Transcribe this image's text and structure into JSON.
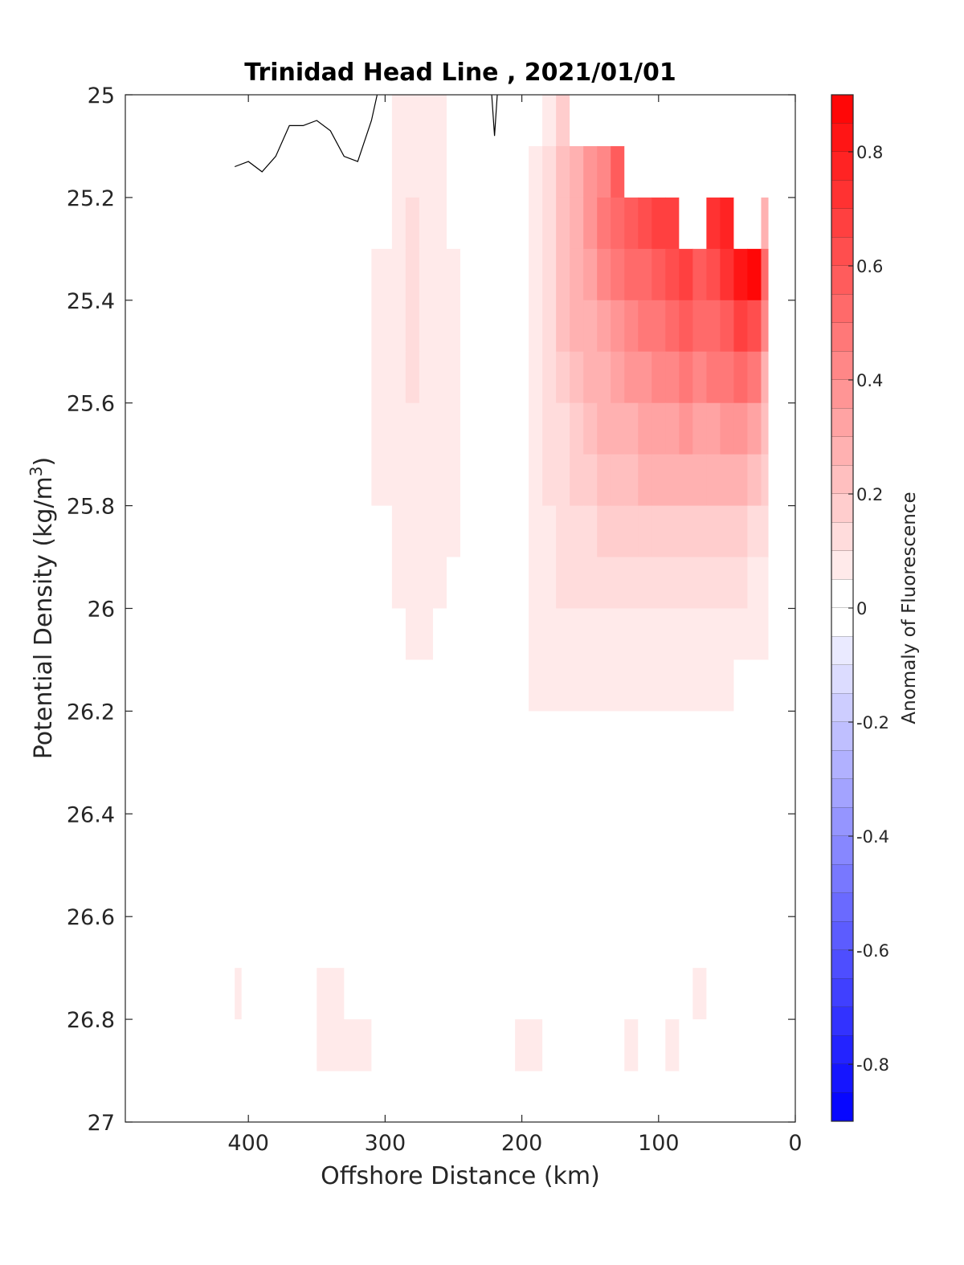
{
  "chart_data": {
    "type": "heatmap",
    "title": "Trinidad Head Line , 2021/01/01",
    "xlabel": "Offshore Distance (km)",
    "ylabel": "Potential Density (kg/m",
    "ylabel_sup": "3",
    "ylabel_close": ")",
    "xlim": [
      490,
      0
    ],
    "ylim": [
      27,
      25
    ],
    "y_reversed": true,
    "x_ticks": [
      400,
      300,
      200,
      100,
      0
    ],
    "x_tick_labels": [
      "400",
      "300",
      "200",
      "100",
      "0"
    ],
    "y_ticks": [
      25,
      25.2,
      25.4,
      25.6,
      25.8,
      26,
      26.2,
      26.4,
      26.6,
      26.8,
      27
    ],
    "y_tick_labels": [
      "25",
      "25.2",
      "25.4",
      "25.6",
      "25.8",
      "26",
      "26.2",
      "26.4",
      "26.6",
      "26.8",
      "27"
    ],
    "colorbar": {
      "label": "Anomaly of Fluorescence",
      "range": [
        -0.9,
        0.9
      ],
      "step": 0.05,
      "ticks": [
        0.8,
        0.6,
        0.4,
        0.2,
        0,
        -0.2,
        -0.4,
        -0.6,
        -0.8
      ],
      "tick_labels": [
        "0.8",
        "0.6",
        "0.4",
        "0.2",
        "0",
        "-0.2",
        "-0.4",
        "-0.6",
        "-0.8"
      ],
      "neg_color": "#0000ff",
      "pos_color": "#ff0000",
      "zero_color": "#ffffff"
    },
    "x": [
      410,
      400,
      380,
      360,
      340,
      320,
      300,
      290,
      280,
      270,
      260,
      250,
      240,
      230,
      220,
      210,
      200,
      190,
      180,
      170,
      160,
      150,
      140,
      130,
      120,
      110,
      100,
      90,
      80,
      70,
      60,
      50,
      40,
      30,
      20
    ],
    "y": [
      25.05,
      25.15,
      25.25,
      25.35,
      25.45,
      25.55,
      25.65,
      25.75,
      25.85,
      25.95,
      26.05,
      26.15,
      26.25,
      26.35,
      26.45,
      26.55,
      26.65,
      26.75,
      26.85
    ],
    "values": [
      [
        -0.02,
        0.01,
        0.02,
        0.02,
        0.02,
        0.02,
        0.01,
        0.06,
        0.09,
        0.08,
        0.06,
        0.03,
        0.01,
        0.0,
        -0.01,
        0.0,
        0.0,
        0.04,
        0.09,
        0.16,
        0.0,
        0.0,
        0.0,
        0.0,
        0.0,
        0.0,
        0.0,
        0.0,
        0.0,
        0.0,
        0.0,
        0.0,
        0.0,
        0.0,
        0.0
      ],
      [
        0.0,
        -0.01,
        -0.01,
        -0.01,
        -0.01,
        -0.01,
        0.03,
        0.05,
        0.08,
        0.07,
        0.05,
        0.03,
        0.01,
        0.0,
        0.0,
        0.0,
        0.01,
        0.05,
        0.1,
        0.2,
        0.28,
        0.36,
        0.44,
        0.55,
        0.0,
        0.0,
        0.0,
        0.0,
        0.0,
        0.0,
        0.0,
        0.0,
        0.0,
        0.0,
        0.0
      ],
      [
        0.01,
        0.01,
        0.02,
        0.03,
        0.02,
        0.02,
        0.04,
        0.06,
        0.1,
        0.08,
        0.06,
        0.04,
        0.02,
        0.01,
        0.0,
        0.0,
        0.02,
        0.06,
        0.12,
        0.22,
        0.3,
        0.38,
        0.45,
        0.52,
        0.58,
        0.62,
        0.66,
        0.7,
        0.0,
        0.0,
        0.72,
        0.76,
        0.0,
        0.0,
        0.3
      ],
      [
        0.02,
        0.03,
        0.03,
        0.03,
        0.03,
        0.03,
        0.05,
        0.07,
        0.11,
        0.09,
        0.07,
        0.05,
        0.03,
        0.02,
        0.01,
        0.01,
        0.03,
        0.07,
        0.13,
        0.22,
        0.28,
        0.34,
        0.4,
        0.45,
        0.5,
        0.54,
        0.58,
        0.62,
        0.66,
        0.6,
        0.64,
        0.72,
        0.8,
        0.88,
        0.5
      ],
      [
        0.02,
        0.03,
        0.03,
        0.03,
        0.03,
        0.03,
        0.05,
        0.07,
        0.1,
        0.09,
        0.07,
        0.05,
        0.04,
        0.03,
        0.03,
        0.03,
        0.04,
        0.07,
        0.12,
        0.2,
        0.25,
        0.3,
        0.34,
        0.38,
        0.42,
        0.45,
        0.48,
        0.52,
        0.55,
        0.5,
        0.54,
        0.6,
        0.66,
        0.62,
        0.4
      ],
      [
        0.03,
        0.03,
        0.03,
        0.03,
        0.03,
        0.03,
        0.05,
        0.06,
        0.1,
        0.08,
        0.06,
        0.05,
        0.04,
        0.03,
        0.03,
        0.03,
        0.04,
        0.07,
        0.11,
        0.18,
        0.22,
        0.26,
        0.3,
        0.33,
        0.36,
        0.38,
        0.4,
        0.43,
        0.46,
        0.42,
        0.45,
        0.48,
        0.5,
        0.46,
        0.3
      ],
      [
        0.04,
        0.03,
        0.03,
        0.03,
        0.03,
        0.03,
        0.05,
        0.06,
        0.09,
        0.08,
        0.06,
        0.05,
        0.04,
        0.03,
        0.03,
        0.03,
        0.04,
        0.07,
        0.1,
        0.15,
        0.19,
        0.22,
        0.25,
        0.28,
        0.3,
        0.31,
        0.32,
        0.34,
        0.36,
        0.33,
        0.35,
        0.36,
        0.37,
        0.33,
        0.22
      ],
      [
        0.03,
        0.03,
        0.03,
        0.03,
        0.03,
        0.03,
        0.05,
        0.06,
        0.09,
        0.08,
        0.06,
        0.05,
        0.04,
        0.03,
        0.03,
        0.03,
        0.04,
        0.07,
        0.1,
        0.14,
        0.17,
        0.19,
        0.21,
        0.23,
        0.24,
        0.25,
        0.25,
        0.26,
        0.27,
        0.25,
        0.26,
        0.26,
        0.26,
        0.23,
        0.16
      ],
      [
        0.03,
        0.03,
        0.03,
        0.03,
        0.03,
        0.03,
        0.04,
        0.06,
        0.08,
        0.07,
        0.06,
        0.05,
        0.04,
        0.03,
        0.03,
        0.03,
        0.04,
        0.07,
        0.09,
        0.12,
        0.14,
        0.15,
        0.16,
        0.17,
        0.18,
        0.18,
        0.18,
        0.19,
        0.19,
        0.18,
        0.18,
        0.18,
        0.17,
        0.15,
        0.1
      ],
      [
        0.03,
        0.03,
        0.03,
        0.03,
        0.03,
        0.03,
        0.04,
        0.05,
        0.06,
        0.06,
        0.05,
        0.04,
        0.04,
        0.03,
        0.03,
        0.03,
        0.04,
        0.06,
        0.08,
        0.1,
        0.11,
        0.12,
        0.13,
        0.13,
        0.13,
        0.13,
        0.13,
        0.13,
        0.13,
        0.12,
        0.12,
        0.11,
        0.1,
        0.09,
        0.07
      ],
      [
        0.03,
        0.03,
        0.03,
        0.03,
        0.03,
        0.03,
        0.04,
        0.04,
        0.05,
        0.05,
        0.04,
        0.04,
        0.04,
        0.03,
        0.03,
        0.03,
        0.04,
        0.05,
        0.07,
        0.08,
        0.09,
        0.09,
        0.09,
        0.09,
        0.09,
        0.09,
        0.09,
        0.09,
        0.09,
        0.08,
        0.08,
        0.07,
        0.07,
        0.06,
        0.05
      ],
      [
        0.03,
        0.03,
        0.03,
        0.03,
        0.03,
        0.03,
        0.04,
        0.04,
        0.04,
        0.04,
        0.04,
        0.04,
        0.04,
        0.03,
        0.03,
        0.03,
        0.04,
        0.05,
        0.06,
        0.06,
        0.06,
        0.06,
        0.06,
        0.06,
        0.06,
        0.06,
        0.06,
        0.06,
        0.06,
        0.06,
        0.06,
        0.05,
        0.03,
        0.03,
        0.03
      ],
      [
        0.03,
        0.03,
        0.03,
        0.03,
        0.03,
        0.03,
        0.03,
        0.03,
        0.03,
        0.03,
        0.03,
        0.03,
        0.03,
        0.03,
        0.03,
        0.03,
        0.03,
        0.04,
        0.04,
        0.04,
        0.04,
        0.04,
        0.04,
        0.04,
        0.04,
        0.04,
        0.04,
        0.04,
        0.04,
        0.04,
        0.04,
        0.02,
        0.01,
        0.01,
        0.03
      ],
      [
        0.03,
        0.03,
        0.03,
        0.03,
        0.03,
        0.03,
        0.03,
        0.03,
        0.03,
        0.03,
        0.03,
        0.03,
        0.03,
        0.03,
        0.03,
        0.03,
        0.03,
        0.03,
        0.03,
        0.03,
        0.03,
        0.03,
        0.03,
        0.03,
        0.03,
        0.03,
        0.03,
        0.03,
        0.03,
        0.03,
        0.03,
        0.03,
        0.02,
        0.01,
        0.03
      ],
      [
        0.03,
        0.03,
        0.03,
        0.03,
        0.03,
        0.03,
        0.03,
        0.03,
        0.03,
        0.03,
        0.03,
        0.03,
        0.03,
        0.03,
        0.03,
        0.03,
        0.03,
        0.03,
        0.03,
        0.03,
        0.03,
        0.03,
        0.03,
        0.03,
        0.03,
        0.03,
        0.03,
        0.03,
        0.03,
        0.03,
        0.03,
        0.03,
        0.03,
        0.03,
        0.03
      ],
      [
        0.03,
        0.03,
        0.03,
        0.03,
        0.03,
        0.03,
        0.03,
        0.03,
        0.03,
        0.03,
        0.03,
        0.03,
        0.03,
        0.03,
        0.03,
        0.03,
        0.03,
        0.03,
        0.03,
        0.04,
        0.03,
        0.03,
        0.03,
        0.03,
        0.03,
        0.03,
        0.03,
        0.04,
        0.03,
        0.03,
        0.03,
        0.03,
        0.03,
        0.03,
        0.03
      ],
      [
        0.03,
        0.03,
        0.03,
        0.03,
        0.03,
        0.03,
        0.03,
        0.03,
        0.03,
        0.03,
        0.03,
        0.03,
        0.03,
        0.03,
        0.03,
        0.03,
        0.03,
        0.03,
        0.03,
        0.03,
        0.03,
        0.03,
        0.03,
        0.03,
        0.03,
        0.03,
        0.03,
        0.03,
        0.03,
        0.03,
        0.03,
        0.03,
        0.03,
        0.03,
        0.01
      ],
      [
        0.06,
        0.03,
        0.03,
        0.03,
        0.06,
        0.03,
        0.03,
        0.03,
        0.03,
        0.03,
        0.03,
        0.03,
        0.03,
        0.03,
        0.03,
        0.03,
        0.03,
        0.03,
        0.03,
        0.03,
        0.03,
        0.03,
        0.03,
        0.03,
        0.03,
        0.03,
        0.03,
        0.03,
        0.03,
        0.06,
        0.03,
        0.03,
        0.03,
        0.03,
        0.0
      ],
      [
        0.03,
        0.03,
        0.03,
        0.03,
        0.07,
        0.05,
        0.03,
        0.03,
        0.03,
        0.03,
        0.03,
        0.03,
        0.03,
        0.03,
        0.03,
        0.03,
        0.06,
        0.06,
        0.03,
        0.03,
        0.03,
        0.03,
        0.03,
        0.03,
        0.05,
        0.03,
        0.03,
        0.05,
        0.03,
        0.03,
        0.03,
        0.03,
        0.03,
        0.03,
        0.0
      ]
    ],
    "zero_contour_x": [
      410,
      400,
      390,
      380,
      370,
      360,
      350,
      340,
      330,
      320,
      310,
      305,
      300
    ],
    "zero_contour_y": [
      25.14,
      25.13,
      25.15,
      25.12,
      25.06,
      25.06,
      25.05,
      25.07,
      25.12,
      25.13,
      25.05,
      24.99,
      24.99
    ],
    "zero_contour2_x": [
      222,
      220,
      218
    ],
    "zero_contour2_y": [
      25.0,
      25.08,
      25.0
    ],
    "grid": false
  }
}
